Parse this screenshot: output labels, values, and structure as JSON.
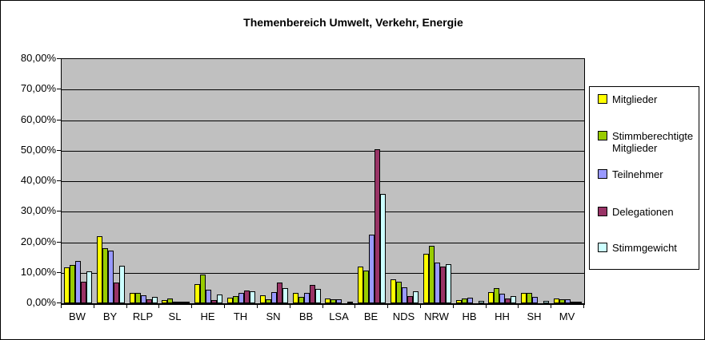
{
  "chart_data": {
    "type": "bar",
    "title": "Themenbereich Umwelt, Verkehr, Energie",
    "categories": [
      "BW",
      "BY",
      "RLP",
      "SL",
      "HE",
      "TH",
      "SN",
      "BB",
      "LSA",
      "BE",
      "NDS",
      "NRW",
      "HB",
      "HH",
      "SH",
      "MV"
    ],
    "series": [
      {
        "name": "Mitglieder",
        "color": "#FFFF00",
        "values": [
          11.8,
          22.0,
          3.3,
          1.0,
          6.2,
          1.8,
          2.6,
          3.4,
          1.6,
          12.1,
          7.9,
          16.1,
          1.1,
          3.7,
          3.4,
          1.6
        ]
      },
      {
        "name": "Stimmberechtigte Mitglieder",
        "color": "#99CC00",
        "values": [
          12.5,
          18.0,
          3.4,
          1.6,
          9.3,
          2.4,
          1.3,
          2.0,
          1.4,
          10.7,
          7.0,
          18.8,
          1.5,
          4.9,
          3.5,
          1.4
        ]
      },
      {
        "name": "Teilnehmer",
        "color": "#9999FF",
        "values": [
          13.8,
          17.3,
          2.6,
          0.6,
          4.5,
          3.5,
          3.7,
          3.4,
          1.4,
          22.6,
          5.1,
          13.4,
          1.8,
          3.1,
          2.1,
          1.3
        ]
      },
      {
        "name": "Delegationen",
        "color": "#993366",
        "values": [
          7.0,
          6.8,
          1.2,
          0.2,
          1.0,
          4.2,
          6.8,
          5.9,
          0.1,
          50.4,
          2.4,
          11.9,
          0.1,
          1.6,
          0.1,
          0.3
        ]
      },
      {
        "name": "Stimmgewicht",
        "color": "#CCFFFF",
        "values": [
          10.4,
          12.3,
          2.0,
          0.3,
          2.8,
          4.0,
          5.0,
          4.6,
          0.5,
          35.9,
          4.0,
          12.7,
          0.7,
          2.3,
          0.9,
          0.5
        ]
      }
    ],
    "ylim": [
      0,
      80
    ],
    "y_tick_step": 10,
    "y_tick_labels": [
      "0,00%",
      "10,00%",
      "20,00%",
      "30,00%",
      "40,00%",
      "50,00%",
      "60,00%",
      "70,00%",
      "80,00%"
    ],
    "grid": "horizontal",
    "legend_position": "right",
    "plot_bg_color": "#C0C0C0",
    "axis_color": "#000000"
  }
}
